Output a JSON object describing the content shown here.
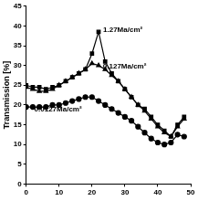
{
  "chart_data": {
    "type": "line",
    "y_label": "Transmission [%]",
    "x": [
      0,
      2,
      4,
      6,
      8,
      10,
      12,
      14,
      16,
      18,
      20,
      22,
      24,
      26,
      28,
      30,
      32,
      34,
      36,
      38,
      40,
      42,
      44,
      46,
      48
    ],
    "series": [
      {
        "name": "1.27Ma/cm²",
        "color": "#000000",
        "marker": "square",
        "line_style": "solid",
        "values": [
          25,
          24.5,
          24.5,
          24,
          24.5,
          25,
          26,
          27,
          28,
          29,
          33,
          38.5,
          31,
          28,
          26,
          24,
          22,
          20,
          19,
          17,
          15,
          13.5,
          12,
          15,
          17
        ]
      },
      {
        "name": "0.127Ma/cm²",
        "color": "#000000",
        "marker": "triangle",
        "line_style": "solid",
        "values": [
          24.5,
          24,
          23.5,
          23.5,
          24,
          25,
          26,
          27,
          28,
          29,
          30.5,
          30,
          29,
          27.5,
          26,
          24,
          22,
          20,
          18.5,
          16.5,
          14.5,
          13,
          12,
          14.5,
          16.5
        ]
      },
      {
        "name": "0.0127Ma/cm²",
        "color": "#000000",
        "marker": "circle",
        "line_style": "solid",
        "values": [
          19.5,
          19.5,
          19.5,
          19.5,
          20,
          20,
          20.5,
          21,
          21.5,
          22,
          22,
          21,
          20,
          19,
          18,
          17,
          16,
          14.5,
          13,
          11.5,
          10.5,
          10,
          10.5,
          12.5,
          12
        ]
      }
    ],
    "xlim": [
      0,
      50
    ],
    "xticks": [
      0,
      10,
      20,
      30,
      40,
      50
    ],
    "ylim": [
      0,
      45
    ],
    "yticks": [
      0,
      5,
      10,
      15,
      20,
      25,
      30,
      35,
      40,
      45
    ],
    "grid": false
  }
}
